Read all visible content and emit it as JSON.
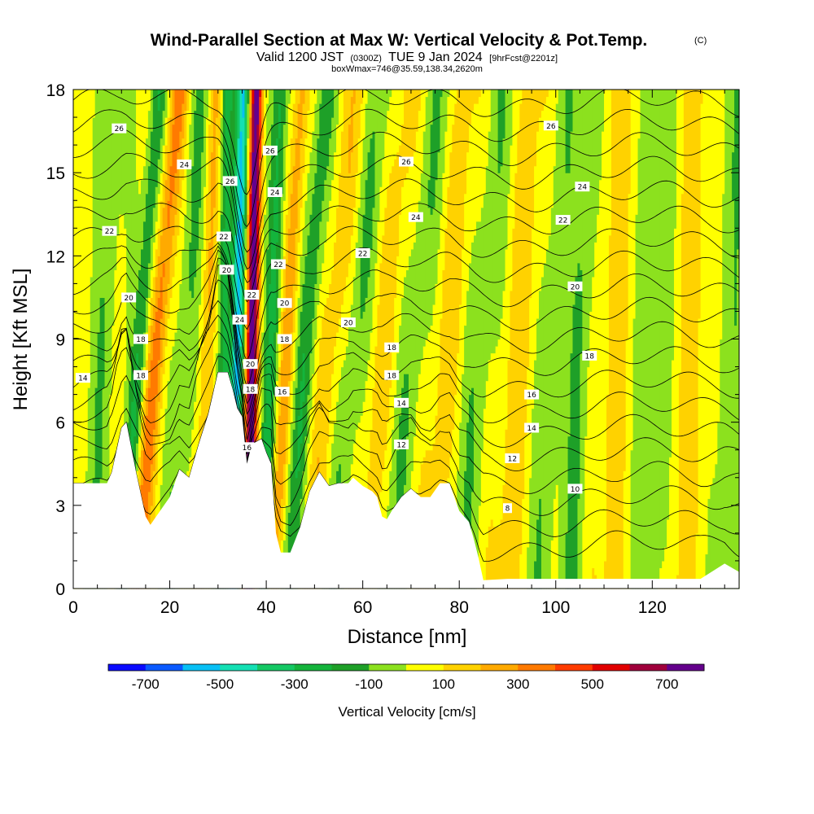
{
  "chart_data": {
    "type": "heatmap",
    "title": {
      "main": "Wind-Parallel Section at Max W: Vertical Velocity & Pot.Temp.",
      "copyright": "(C)",
      "valid_prefix": "Valid 1200 JST",
      "utc": "(0300Z)",
      "valid_date": "TUE 9 Jan 2024",
      "forecast": "[9hrFcst@2201z]",
      "boxwmax": "boxWmax=746@35.59,138.34,2620m"
    },
    "xlabel": "Distance [nm]",
    "ylabel": "Height [Kft MSL]",
    "xlim": [
      0,
      138
    ],
    "ylim": [
      0,
      18
    ],
    "x_ticks": [
      "0",
      "20",
      "40",
      "60",
      "80",
      "100",
      "120"
    ],
    "y_ticks": [
      "0",
      "3",
      "6",
      "9",
      "12",
      "15",
      "18"
    ],
    "colorbar": {
      "label": "Vertical Velocity [cm/s]",
      "levels": [
        -800,
        -700,
        -600,
        -500,
        -400,
        -300,
        -200,
        -100,
        0,
        100,
        200,
        300,
        400,
        500,
        600,
        700,
        800
      ],
      "tick_labels": [
        "-700",
        "-500",
        "-300",
        "-100",
        "100",
        "300",
        "500",
        "700"
      ],
      "colors": [
        "#0a0aff",
        "#0a5aff",
        "#08c0f5",
        "#14e0b4",
        "#14c864",
        "#14b43c",
        "#1ea028",
        "#8ce11e",
        "#ffff00",
        "#ffd200",
        "#ffaa00",
        "#ff7a00",
        "#ff3c00",
        "#e10000",
        "#a0003c",
        "#64008c"
      ]
    },
    "terrain_kft": [
      [
        0,
        3.8
      ],
      [
        7,
        3.8
      ],
      [
        8,
        4.2
      ],
      [
        10,
        5.8
      ],
      [
        11,
        6.0
      ],
      [
        13,
        4.2
      ],
      [
        15,
        2.6
      ],
      [
        16,
        2.3
      ],
      [
        18,
        2.8
      ],
      [
        20,
        3.3
      ],
      [
        22,
        4.3
      ],
      [
        24,
        4.0
      ],
      [
        26,
        5.2
      ],
      [
        28,
        6.3
      ],
      [
        30,
        7.8
      ],
      [
        32,
        7.8
      ],
      [
        33,
        7.2
      ],
      [
        34,
        6.5
      ],
      [
        35,
        6.2
      ],
      [
        36,
        4.5
      ],
      [
        37,
        5.2
      ],
      [
        39,
        5.4
      ],
      [
        40,
        4.9
      ],
      [
        41,
        4.5
      ],
      [
        42,
        2.0
      ],
      [
        43,
        1.3
      ],
      [
        45,
        1.3
      ],
      [
        47,
        2.2
      ],
      [
        49,
        3.5
      ],
      [
        51,
        4.2
      ],
      [
        53,
        3.7
      ],
      [
        55,
        3.8
      ],
      [
        57,
        3.8
      ],
      [
        58,
        4.0
      ],
      [
        60,
        3.7
      ],
      [
        62,
        3.5
      ],
      [
        63,
        3.3
      ],
      [
        64,
        2.6
      ],
      [
        65,
        2.5
      ],
      [
        66,
        2.8
      ],
      [
        68,
        3.3
      ],
      [
        70,
        3.6
      ],
      [
        72,
        3.3
      ],
      [
        74,
        3.3
      ],
      [
        76,
        3.8
      ],
      [
        78,
        3.8
      ],
      [
        79,
        3.3
      ],
      [
        80,
        2.8
      ],
      [
        82,
        2.4
      ],
      [
        83,
        1.8
      ],
      [
        84,
        1.1
      ],
      [
        85,
        0.3
      ],
      [
        90,
        0.35
      ],
      [
        100,
        0.35
      ],
      [
        115,
        0.35
      ],
      [
        130,
        0.35
      ],
      [
        135,
        0.9
      ],
      [
        138,
        0.6
      ]
    ],
    "updrafts": [
      {
        "xc": 37.0,
        "slope": 0.09,
        "amp": 760,
        "width": 1.3
      },
      {
        "xc": 34.0,
        "slope": 0.13,
        "amp": -560,
        "width": 1.4
      },
      {
        "xc": 31.0,
        "slope": 0.1,
        "amp": -250,
        "width": 1.3
      },
      {
        "xc": 41.0,
        "slope": 0.2,
        "amp": -260,
        "width": 1.6
      },
      {
        "xc": 27.5,
        "slope": 0.2,
        "amp": 170,
        "width": 1.5
      },
      {
        "xc": 44.0,
        "slope": 0.34,
        "amp": 230,
        "width": 1.6
      },
      {
        "xc": 17.0,
        "slope": 0.5,
        "amp": 310,
        "width": 1.9
      },
      {
        "xc": 13.5,
        "slope": 0.43,
        "amp": -230,
        "width": 1.6
      },
      {
        "xc": 48.0,
        "slope": 0.45,
        "amp": -210,
        "width": 2.0
      },
      {
        "xc": 23.0,
        "slope": 0.35,
        "amp": -140,
        "width": 2.2
      },
      {
        "xc": 53.0,
        "slope": 0.55,
        "amp": 140,
        "width": 2.6
      },
      {
        "xc": 58.0,
        "slope": 0.6,
        "amp": -130,
        "width": 2.8
      },
      {
        "xc": 64.0,
        "slope": 0.55,
        "amp": 120,
        "width": 3.0
      },
      {
        "xc": 70.0,
        "slope": 0.6,
        "amp": -120,
        "width": 3.0
      },
      {
        "xc": 77.0,
        "slope": 0.5,
        "amp": 120,
        "width": 3.2
      },
      {
        "xc": 84.0,
        "slope": 0.5,
        "amp": -110,
        "width": 3.2
      },
      {
        "xc": 92.0,
        "slope": 0.4,
        "amp": 120,
        "width": 3.5
      },
      {
        "xc": 99.0,
        "slope": 0.3,
        "amp": -110,
        "width": 3.0
      },
      {
        "xc": 105.0,
        "slope": 0.2,
        "amp": -150,
        "width": 2.2
      },
      {
        "xc": 112.0,
        "slope": 0.2,
        "amp": 110,
        "width": 3.5
      },
      {
        "xc": 120.0,
        "slope": 0.15,
        "amp": -110,
        "width": 3.5
      },
      {
        "xc": 128.0,
        "slope": 0.15,
        "amp": 110,
        "width": 3.5
      },
      {
        "xc": 136.0,
        "slope": 0.1,
        "amp": -110,
        "width": 3.0
      },
      {
        "xc": 6.0,
        "slope": 0.3,
        "amp": -110,
        "width": 2.5
      }
    ],
    "theta_base_k": [
      8,
      9,
      10,
      11,
      12,
      13,
      14,
      15,
      16,
      17,
      18,
      19,
      20,
      21,
      22,
      23,
      24,
      25,
      26,
      27
    ],
    "contour_labels": [
      {
        "text": "26",
        "x": 9.5,
        "y": 16.6
      },
      {
        "text": "24",
        "x": 23.0,
        "y": 15.3
      },
      {
        "text": "22",
        "x": 7.5,
        "y": 12.9
      },
      {
        "text": "20",
        "x": 11.5,
        "y": 10.5
      },
      {
        "text": "18",
        "x": 14.0,
        "y": 9.0
      },
      {
        "text": "18",
        "x": 14.0,
        "y": 7.7
      },
      {
        "text": "14",
        "x": 2.0,
        "y": 7.6
      },
      {
        "text": "26",
        "x": 32.5,
        "y": 14.7
      },
      {
        "text": "22",
        "x": 31.2,
        "y": 12.7
      },
      {
        "text": "20",
        "x": 31.8,
        "y": 11.5
      },
      {
        "text": "24",
        "x": 34.5,
        "y": 9.7
      },
      {
        "text": "22",
        "x": 37.0,
        "y": 10.6
      },
      {
        "text": "20",
        "x": 36.7,
        "y": 8.1
      },
      {
        "text": "18",
        "x": 36.7,
        "y": 7.2
      },
      {
        "text": "16",
        "x": 36.0,
        "y": 5.1
      },
      {
        "text": "26",
        "x": 40.8,
        "y": 15.8
      },
      {
        "text": "24",
        "x": 41.8,
        "y": 14.3
      },
      {
        "text": "22",
        "x": 42.5,
        "y": 11.7
      },
      {
        "text": "20",
        "x": 43.8,
        "y": 10.3
      },
      {
        "text": "18",
        "x": 43.8,
        "y": 9.0
      },
      {
        "text": "16",
        "x": 43.3,
        "y": 7.1
      },
      {
        "text": "26",
        "x": 69.0,
        "y": 15.4
      },
      {
        "text": "24",
        "x": 71.0,
        "y": 13.4
      },
      {
        "text": "22",
        "x": 60.0,
        "y": 12.1
      },
      {
        "text": "20",
        "x": 57.0,
        "y": 9.6
      },
      {
        "text": "18",
        "x": 66.0,
        "y": 8.7
      },
      {
        "text": "18",
        "x": 66.0,
        "y": 7.7
      },
      {
        "text": "14",
        "x": 68.0,
        "y": 6.7
      },
      {
        "text": "12",
        "x": 68.0,
        "y": 5.2
      },
      {
        "text": "26",
        "x": 99.0,
        "y": 16.7
      },
      {
        "text": "24",
        "x": 105.5,
        "y": 14.5
      },
      {
        "text": "22",
        "x": 101.5,
        "y": 13.3
      },
      {
        "text": "20",
        "x": 104.0,
        "y": 10.9
      },
      {
        "text": "18",
        "x": 107.0,
        "y": 8.4
      },
      {
        "text": "16",
        "x": 95.0,
        "y": 7.0
      },
      {
        "text": "14",
        "x": 95.0,
        "y": 5.8
      },
      {
        "text": "12",
        "x": 91.0,
        "y": 4.7
      },
      {
        "text": "10",
        "x": 104.0,
        "y": 3.6
      },
      {
        "text": "8",
        "x": 90.0,
        "y": 2.9
      }
    ]
  }
}
